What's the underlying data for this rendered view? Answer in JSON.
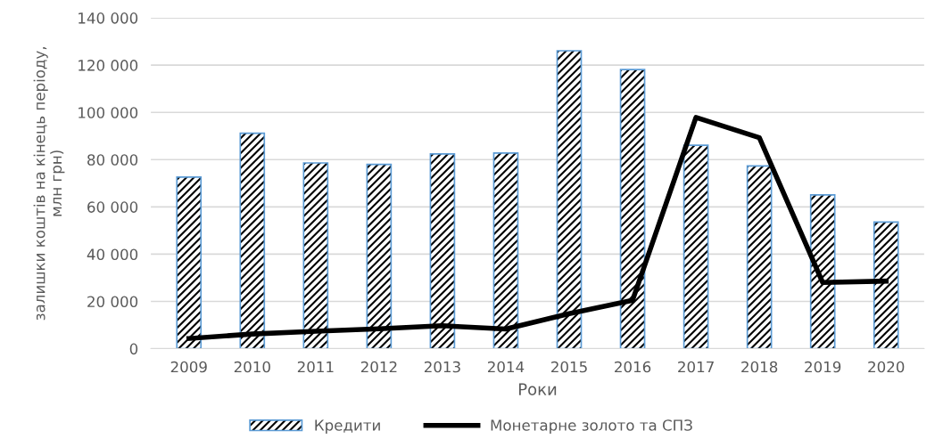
{
  "chart_data": {
    "type": "bar",
    "xlabel": "Роки",
    "ylabel": "залишки коштів на кінець періоду,\nмлн грн)",
    "categories": [
      "2009",
      "2010",
      "2011",
      "2012",
      "2013",
      "2014",
      "2015",
      "2016",
      "2017",
      "2018",
      "2019",
      "2020"
    ],
    "series": [
      {
        "name": "Кредити",
        "color": "#5b9bd5",
        "values": [
          72600,
          91200,
          78600,
          78000,
          82400,
          82800,
          126100,
          118100,
          86100,
          77300,
          65100,
          53600
        ]
      },
      {
        "name": "Монетарне золото та СПЗ",
        "type": "line",
        "color": "#000000",
        "values": [
          4300,
          6200,
          7400,
          8400,
          9700,
          8300,
          14800,
          20500,
          97900,
          89300,
          28000,
          28600
        ]
      }
    ],
    "ylim": [
      0,
      140000
    ],
    "yticks": [
      {
        "value": 0,
        "label": "0"
      },
      {
        "value": 20000,
        "label": "20 000"
      },
      {
        "value": 40000,
        "label": "40 000"
      },
      {
        "value": 60000,
        "label": "60 000"
      },
      {
        "value": 80000,
        "label": "80 000"
      },
      {
        "value": 100000,
        "label": "100 000"
      },
      {
        "value": 120000,
        "label": "120 000"
      },
      {
        "value": 140000,
        "label": "140 000"
      }
    ],
    "grid": "y",
    "legend": "bottom",
    "marker": "none",
    "line_style": "solid"
  }
}
